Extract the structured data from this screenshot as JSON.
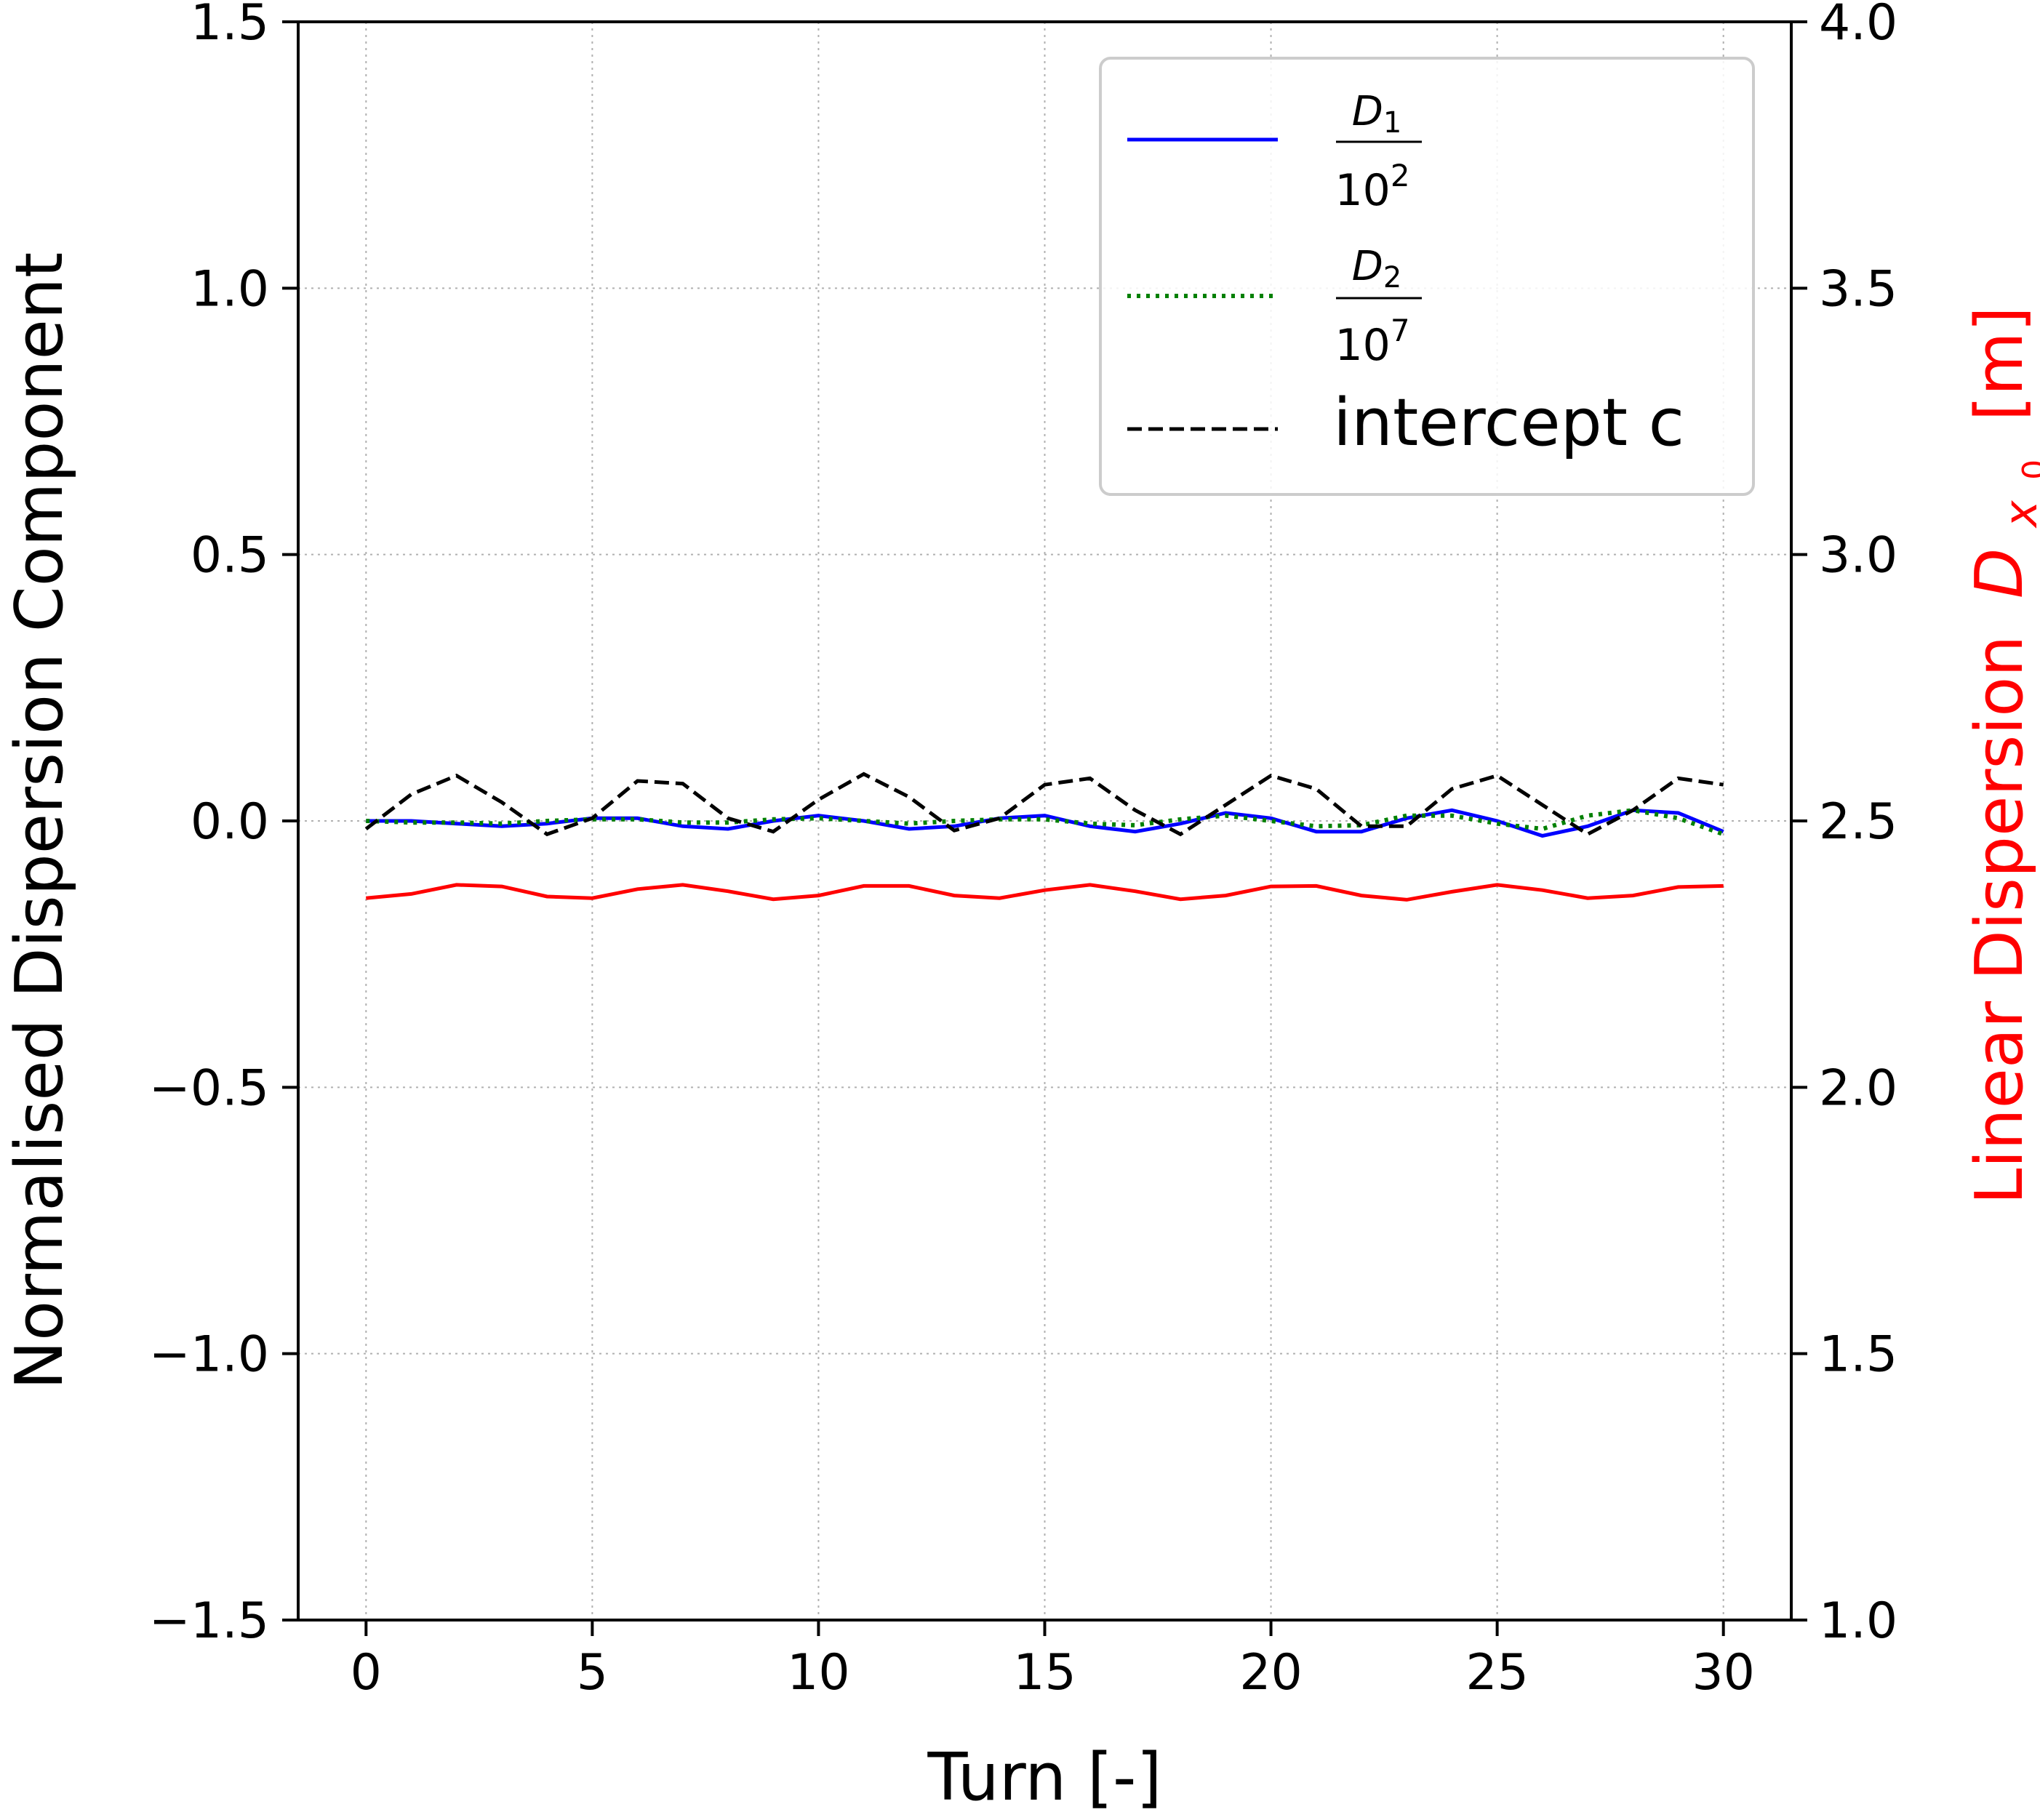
{
  "chart_data": {
    "type": "line",
    "xlabel": "Turn [-]",
    "ylabel_left": "Normalised Dispersion Component",
    "ylabel_right": "Linear Dispersion",
    "ylabel_right_symbol": "D",
    "ylabel_right_subscript": "x",
    "ylabel_right_subsubscript": "0",
    "ylabel_right_unit": "[m]",
    "xlim": [
      -1.5,
      31.5
    ],
    "ylim_left": [
      -1.5,
      1.5
    ],
    "ylim_right": [
      1.0,
      4.0
    ],
    "x_ticks": [
      "0",
      "5",
      "10",
      "15",
      "20",
      "25",
      "30"
    ],
    "y_ticks_left": [
      "−1.5",
      "−1.0",
      "−0.5",
      "0.0",
      "0.5",
      "1.0",
      "1.5"
    ],
    "y_ticks_right": [
      "1.0",
      "1.5",
      "2.0",
      "2.5",
      "3.0",
      "3.5",
      "4.0"
    ],
    "grid": true,
    "legend_position": "top-right",
    "x": [
      0,
      1,
      2,
      3,
      4,
      5,
      6,
      7,
      8,
      9,
      10,
      11,
      12,
      13,
      14,
      15,
      16,
      17,
      18,
      19,
      20,
      21,
      22,
      23,
      24,
      25,
      26,
      27,
      28,
      29,
      30
    ],
    "series": [
      {
        "name_num": "D",
        "name_num_sub": "1",
        "name_den": "10",
        "name_den_sup": "2",
        "axis": "left",
        "color": "#0000ff",
        "dash": "solid",
        "values": [
          0.0,
          0.0,
          -0.005,
          -0.01,
          -0.005,
          0.005,
          0.005,
          -0.01,
          -0.015,
          0.0,
          0.01,
          0.0,
          -0.015,
          -0.01,
          0.005,
          0.01,
          -0.01,
          -0.02,
          -0.005,
          0.015,
          0.005,
          -0.02,
          -0.02,
          0.005,
          0.02,
          0.0,
          -0.028,
          -0.01,
          0.02,
          0.015,
          -0.02
        ]
      },
      {
        "name_num": "D",
        "name_num_sub": "2",
        "name_den": "10",
        "name_den_sup": "7",
        "axis": "left",
        "color": "#008000",
        "dash": "dotted",
        "values": [
          0.0,
          -0.003,
          -0.003,
          -0.005,
          0.0,
          0.003,
          0.003,
          -0.003,
          -0.003,
          0.003,
          0.005,
          0.0,
          -0.005,
          0.0,
          0.003,
          0.003,
          -0.005,
          -0.008,
          0.003,
          0.01,
          0.0,
          -0.01,
          -0.008,
          0.01,
          0.01,
          -0.005,
          -0.015,
          0.01,
          0.02,
          0.005,
          -0.025
        ]
      },
      {
        "name": "intercept c",
        "axis": "left",
        "color": "#000000",
        "dash": "dashed",
        "values": [
          -0.015,
          0.05,
          0.085,
          0.035,
          -0.025,
          0.005,
          0.075,
          0.07,
          0.005,
          -0.02,
          0.04,
          0.088,
          0.045,
          -0.018,
          0.005,
          0.068,
          0.08,
          0.02,
          -0.025,
          0.03,
          0.085,
          0.06,
          -0.01,
          -0.01,
          0.06,
          0.085,
          0.03,
          -0.025,
          0.02,
          0.08,
          0.068
        ]
      },
      {
        "axis": "right",
        "color": "#ff0000",
        "dash": "solid",
        "values": [
          2.355,
          2.363,
          2.38,
          2.377,
          2.358,
          2.355,
          2.372,
          2.38,
          2.368,
          2.353,
          2.36,
          2.378,
          2.378,
          2.36,
          2.355,
          2.37,
          2.38,
          2.368,
          2.353,
          2.36,
          2.377,
          2.378,
          2.36,
          2.352,
          2.367,
          2.38,
          2.37,
          2.355,
          2.36,
          2.376,
          2.378
        ]
      }
    ]
  }
}
